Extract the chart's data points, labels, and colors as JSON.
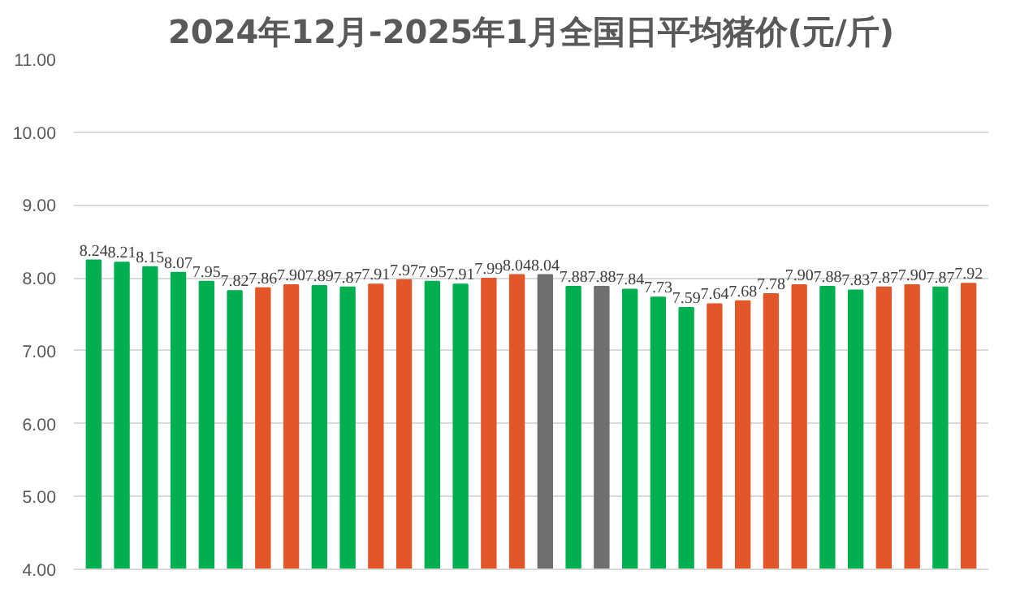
{
  "chart_data": {
    "type": "bar",
    "title": "2024年12月-2025年1月全国日平均猪价(元/斤)",
    "categories": [
      null,
      null,
      null,
      null,
      null,
      null,
      null,
      null,
      null,
      null,
      null,
      null,
      null,
      null,
      null,
      null,
      null,
      null,
      null,
      null,
      null,
      null,
      null,
      null,
      null,
      null,
      null,
      null,
      null,
      null,
      null,
      null
    ],
    "values": [
      8.24,
      8.21,
      8.15,
      8.07,
      7.95,
      7.82,
      7.86,
      7.9,
      7.89,
      7.87,
      7.91,
      7.97,
      7.95,
      7.91,
      7.99,
      8.04,
      8.04,
      7.88,
      7.88,
      7.84,
      7.73,
      7.59,
      7.64,
      7.68,
      7.78,
      7.9,
      7.88,
      7.83,
      7.87,
      7.9,
      7.87,
      7.92
    ],
    "value_labels": [
      "8.24",
      "8.21",
      "8.15",
      "8.07",
      "7.95",
      "7.82",
      "7.86",
      "7.90",
      "7.89",
      "7.87",
      "7.91",
      "7.97",
      "7.95",
      "7.91",
      "7.99",
      "8.04",
      "8.04",
      "7.88",
      "7.88",
      "7.84",
      "7.73",
      "7.59",
      "7.64",
      "7.68",
      "7.78",
      "7.90",
      "7.88",
      "7.83",
      "7.87",
      "7.90",
      "7.87",
      "7.92"
    ],
    "colors": [
      "#00b050",
      "#00b050",
      "#00b050",
      "#00b050",
      "#00b050",
      "#00b050",
      "#e2572a",
      "#e2572a",
      "#00b050",
      "#00b050",
      "#e2572a",
      "#e2572a",
      "#00b050",
      "#00b050",
      "#e2572a",
      "#e2572a",
      "#6f6f6f",
      "#00b050",
      "#6f6f6f",
      "#00b050",
      "#00b050",
      "#00b050",
      "#e2572a",
      "#e2572a",
      "#e2572a",
      "#e2572a",
      "#00b050",
      "#00b050",
      "#e2572a",
      "#e2572a",
      "#00b050",
      "#e2572a"
    ],
    "ylim": [
      4,
      11
    ],
    "yticks": [
      {
        "value": 4,
        "label": "4.00"
      },
      {
        "value": 5,
        "label": "5.00"
      },
      {
        "value": 6,
        "label": "6.00"
      },
      {
        "value": 7,
        "label": "7.00"
      },
      {
        "value": 8,
        "label": "8.00"
      },
      {
        "value": 9,
        "label": "9.00"
      },
      {
        "value": 10,
        "label": "10.00"
      },
      {
        "value": 11,
        "label": "11.00"
      }
    ],
    "grid": "y"
  }
}
